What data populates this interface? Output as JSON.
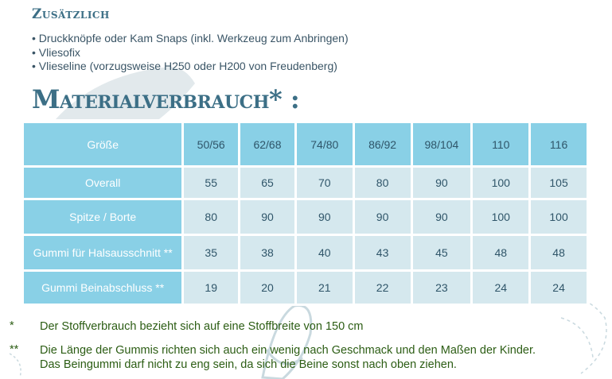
{
  "extras": {
    "heading": "Zusätzlich",
    "items": [
      "Druckknöpfe oder Kam Snaps (inkl. Werkzeug zum Anbringen)",
      "Vliesofix",
      "Vlieseline (vorzugsweise H250 oder H200 von Freudenberg)"
    ]
  },
  "material": {
    "heading": "Materialverbrauch* :"
  },
  "table": {
    "corner": "Größe",
    "sizes": [
      "50/56",
      "62/68",
      "74/80",
      "86/92",
      "98/104",
      "110",
      "116"
    ],
    "rows": [
      {
        "label": "Overall",
        "values": [
          "55",
          "65",
          "70",
          "80",
          "90",
          "100",
          "105"
        ]
      },
      {
        "label": "Spitze  / Borte",
        "values": [
          "80",
          "90",
          "90",
          "90",
          "90",
          "100",
          "100"
        ]
      },
      {
        "label": "Gummi für Halsausschnitt **",
        "values": [
          "35",
          "38",
          "40",
          "43",
          "45",
          "48",
          "48"
        ]
      },
      {
        "label": "Gummi  Beinabschluss **",
        "values": [
          "19",
          "20",
          "21",
          "22",
          "23",
          "24",
          "24"
        ]
      }
    ]
  },
  "footnotes": [
    {
      "mark": "*",
      "lines": [
        "Der Stoffverbrauch bezieht sich auf eine Stoffbreite von 150 cm"
      ]
    },
    {
      "mark": "**",
      "lines": [
        "Die Länge der Gummis richten sich auch ein wenig nach Geschmack und den Maßen der Kinder.",
        "Das Beingummi darf nicht zu eng sein, da sich die Beine sonst nach oben ziehen."
      ]
    }
  ],
  "colors": {
    "header": "#89d0e6",
    "cell": "#d5e8ee",
    "heading": "#3c6f86",
    "footnote": "#2c5d14"
  }
}
